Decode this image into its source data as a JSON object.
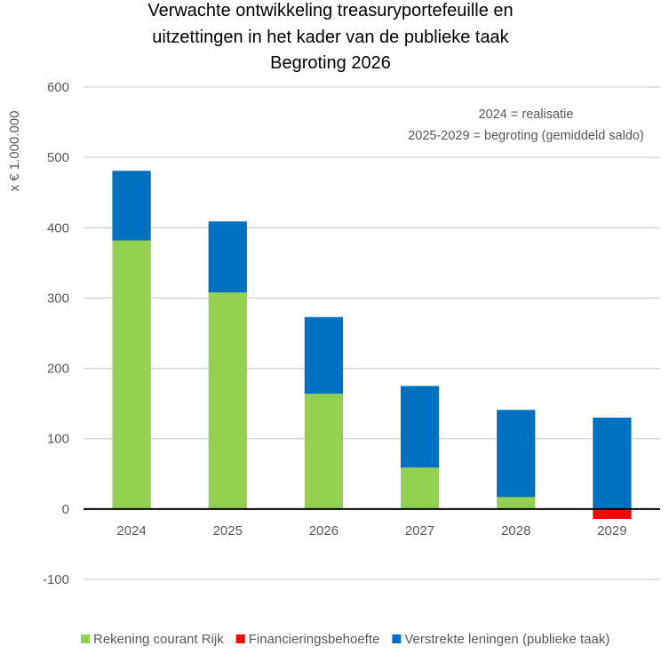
{
  "chart_data": {
    "type": "bar",
    "stacked": true,
    "title_lines": [
      "Verwachte ontwikkeling treasuryportefeuille en",
      "uitzettingen in het kader van de publieke taak",
      "Begroting 2026"
    ],
    "xlabel": "",
    "ylabel": "x € 1.000.000",
    "ylim": [
      -100,
      600
    ],
    "yticks": [
      -100,
      0,
      100,
      200,
      300,
      400,
      500,
      600
    ],
    "ytick_labels": [
      "-100",
      "0",
      "100",
      "200",
      "300",
      "400",
      "500",
      "600"
    ],
    "grid": true,
    "categories": [
      "2024",
      "2025",
      "2026",
      "2027",
      "2028",
      "2029"
    ],
    "series": [
      {
        "name": "Rekening courant Rijk",
        "color": "#92D050",
        "values": [
          382,
          308,
          164,
          59,
          17,
          0
        ]
      },
      {
        "name": "Financieringsbehoefte",
        "color": "#FF0000",
        "values": [
          0,
          0,
          0,
          0,
          0,
          -14
        ]
      },
      {
        "name": "Verstrekte leningen (publieke taak)",
        "color": "#0070C0",
        "values": [
          99,
          101,
          109,
          116,
          124,
          130
        ]
      }
    ],
    "annotations": [
      "2024 = realisatie",
      "2025-2029 = begroting (gemiddeld saldo)"
    ],
    "legend_position": "bottom"
  }
}
